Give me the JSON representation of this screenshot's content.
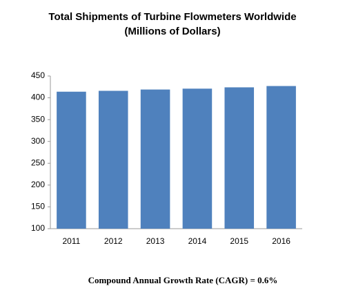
{
  "chart_data": {
    "type": "bar",
    "title": "Total Shipments of Turbine Flowmeters Worldwide",
    "subtitle": "(Millions of Dollars)",
    "categories": [
      "2011",
      "2012",
      "2013",
      "2014",
      "2015",
      "2016"
    ],
    "values": [
      414,
      416,
      419,
      421,
      424,
      427
    ],
    "color": "#4f81bd",
    "ylim": [
      100,
      450
    ],
    "yticks": [
      100,
      150,
      200,
      250,
      300,
      350,
      400,
      450
    ],
    "grid": false,
    "annotation": "Compound Annual Growth Rate (CAGR) = 0.6%"
  }
}
